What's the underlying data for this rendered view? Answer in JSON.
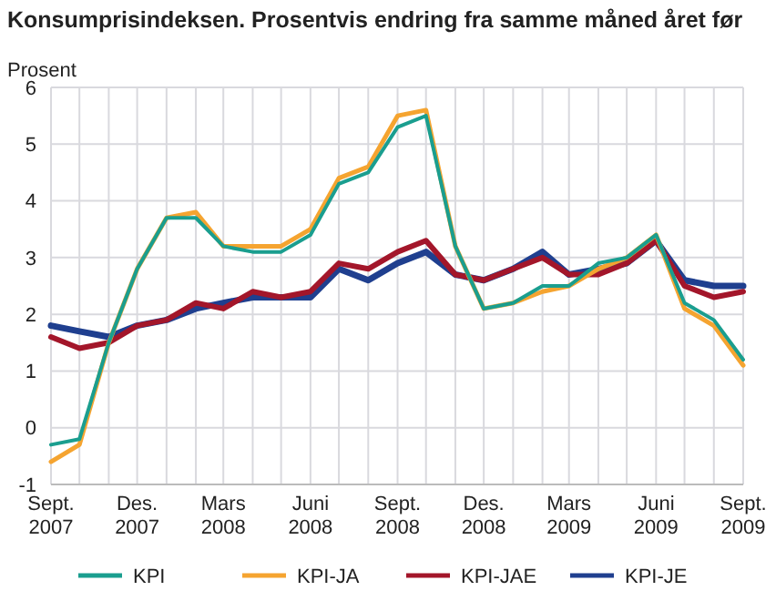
{
  "chart_data": {
    "type": "line",
    "title": "Konsumprisindeksen. Prosentvis endring fra samme måned året før",
    "ylabel": "Prosent",
    "x": [
      "2007-09",
      "2007-10",
      "2007-11",
      "2007-12",
      "2008-01",
      "2008-02",
      "2008-03",
      "2008-04",
      "2008-05",
      "2008-06",
      "2008-07",
      "2008-08",
      "2008-09",
      "2008-10",
      "2008-11",
      "2008-12",
      "2009-01",
      "2009-02",
      "2009-03",
      "2009-04",
      "2009-05",
      "2009-06",
      "2009-07",
      "2009-08",
      "2009-09"
    ],
    "series": [
      {
        "name": "KPI",
        "color": "#1a9e8f",
        "values": [
          -0.3,
          -0.2,
          1.5,
          2.8,
          3.7,
          3.7,
          3.2,
          3.1,
          3.1,
          3.4,
          4.3,
          4.5,
          5.3,
          5.5,
          3.2,
          2.1,
          2.2,
          2.5,
          2.5,
          2.9,
          3.0,
          3.4,
          2.2,
          1.9,
          1.2
        ]
      },
      {
        "name": "KPI-JA",
        "color": "#f5a430",
        "values": [
          -0.6,
          -0.3,
          1.5,
          2.8,
          3.7,
          3.8,
          3.2,
          3.2,
          3.2,
          3.5,
          4.4,
          4.6,
          5.5,
          5.6,
          3.2,
          2.1,
          2.2,
          2.4,
          2.5,
          2.8,
          3.0,
          3.4,
          2.1,
          1.8,
          1.1
        ]
      },
      {
        "name": "KPI-JAE",
        "color": "#a3162a",
        "values": [
          1.6,
          1.4,
          1.5,
          1.8,
          1.9,
          2.2,
          2.1,
          2.4,
          2.3,
          2.4,
          2.9,
          2.8,
          3.1,
          3.3,
          2.7,
          2.6,
          2.8,
          3.0,
          2.7,
          2.7,
          2.9,
          3.3,
          2.5,
          2.3,
          2.4
        ]
      },
      {
        "name": "KPI-JE",
        "color": "#1f3f8f",
        "values": [
          1.8,
          1.7,
          1.6,
          1.8,
          1.9,
          2.1,
          2.2,
          2.3,
          2.3,
          2.3,
          2.8,
          2.6,
          2.9,
          3.1,
          2.7,
          2.6,
          2.8,
          3.1,
          2.7,
          2.8,
          2.9,
          3.3,
          2.6,
          2.5,
          2.5
        ]
      }
    ],
    "xlim": [
      "2007-09",
      "2009-09"
    ],
    "xticks": [
      {
        "value": "2007-09",
        "label": "Sept. 2007"
      },
      {
        "value": "2007-10",
        "label": null
      },
      {
        "value": "2007-11",
        "label": null
      },
      {
        "value": "2007-12",
        "label": "Des. 2007"
      },
      {
        "value": "2008-01",
        "label": null
      },
      {
        "value": "2008-02",
        "label": null
      },
      {
        "value": "2008-03",
        "label": "Mars 2008"
      },
      {
        "value": "2008-04",
        "label": null
      },
      {
        "value": "2008-05",
        "label": null
      },
      {
        "value": "2008-06",
        "label": "Juni 2008"
      },
      {
        "value": "2008-07",
        "label": null
      },
      {
        "value": "2008-08",
        "label": null
      },
      {
        "value": "2008-09",
        "label": "Sept. 2008"
      },
      {
        "value": "2008-10",
        "label": null
      },
      {
        "value": "2008-11",
        "label": null
      },
      {
        "value": "2008-12",
        "label": "Des. 2008"
      },
      {
        "value": "2009-01",
        "label": null
      },
      {
        "value": "2009-02",
        "label": null
      },
      {
        "value": "2009-03",
        "label": "Mars 2009"
      },
      {
        "value": "2009-04",
        "label": null
      },
      {
        "value": "2009-05",
        "label": null
      },
      {
        "value": "2009-06",
        "label": "Juni 2009"
      },
      {
        "value": "2009-07",
        "label": null
      },
      {
        "value": "2009-08",
        "label": null
      },
      {
        "value": "2009-09",
        "label": "Sept. 2009"
      }
    ],
    "ylim": [
      -1,
      6
    ],
    "yticks": [
      -1,
      0,
      1,
      2,
      3,
      4,
      5,
      6
    ],
    "grid": true,
    "legend": "bottom",
    "marker": "none",
    "line_style": "solid"
  }
}
